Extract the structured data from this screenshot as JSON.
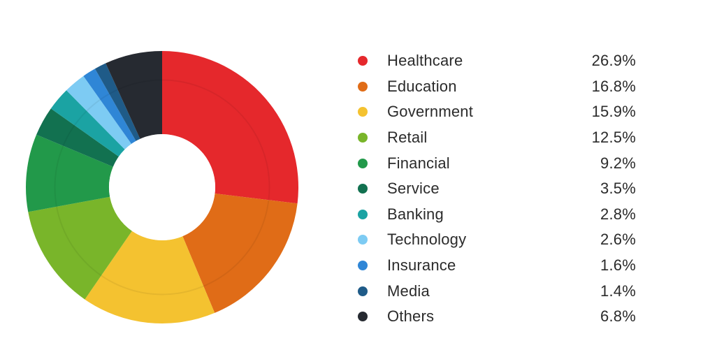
{
  "chart_data": {
    "type": "pie",
    "title": "",
    "categories": [
      "Healthcare",
      "Education",
      "Government",
      "Retail",
      "Financial",
      "Service",
      "Banking",
      "Technology",
      "Insurance",
      "Media",
      "Others"
    ],
    "values": [
      26.9,
      16.8,
      15.9,
      12.5,
      9.2,
      3.5,
      2.8,
      2.6,
      1.6,
      1.4,
      6.8
    ],
    "value_labels": [
      "26.9%",
      "16.8%",
      "15.9%",
      "12.5%",
      "9.2%",
      "3.5%",
      "2.8%",
      "2.6%",
      "1.6%",
      "1.4%",
      "6.8%"
    ],
    "unit": "%",
    "colors": [
      "#e5282c",
      "#e06c17",
      "#f4c230",
      "#79b52a",
      "#22994a",
      "#127150",
      "#1ba3a3",
      "#7dcbf3",
      "#2f86d6",
      "#1f5b88",
      "#262a31"
    ],
    "donut": true,
    "start_angle": "12 o'clock",
    "direction": "clockwise",
    "legend_placement": "right"
  }
}
